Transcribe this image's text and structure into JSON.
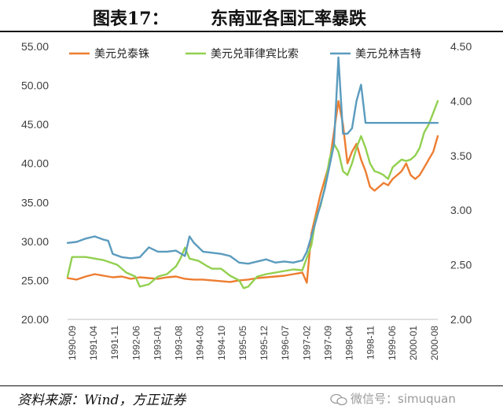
{
  "figure_label": "图表17：",
  "title": "东南亚各国汇率暴跌",
  "source": "资料来源：Wind，方正证券",
  "watermark": "微信号：simuquan",
  "chart_data": {
    "type": "line",
    "legend_position": "top",
    "grid": false,
    "x_ticks": [
      "1990-09",
      "1991-04",
      "1991-11",
      "1992-06",
      "1993-01",
      "1993-08",
      "1994-03",
      "1994-10",
      "1995-05",
      "1995-12",
      "1996-07",
      "1997-02",
      "1997-09",
      "1998-04",
      "1998-11",
      "1999-06",
      "2000-01",
      "2000-08"
    ],
    "y_left": {
      "min": 20,
      "max": 55,
      "step": 5,
      "ticks": [
        "20.00",
        "25.00",
        "30.00",
        "35.00",
        "40.00",
        "45.00",
        "50.00",
        "55.00"
      ]
    },
    "y_right": {
      "min": 2.0,
      "max": 4.5,
      "step": 0.5,
      "ticks": [
        "2.00",
        "2.50",
        "3.00",
        "3.50",
        "4.00",
        "4.50"
      ]
    },
    "series": [
      {
        "name": "美元兑泰铢",
        "axis": "left",
        "color": "#ED7D31",
        "points": [
          [
            0,
            25.3
          ],
          [
            2,
            25.1
          ],
          [
            4,
            25.5
          ],
          [
            6,
            25.8
          ],
          [
            8,
            25.6
          ],
          [
            10,
            25.4
          ],
          [
            12,
            25.5
          ],
          [
            14,
            25.2
          ],
          [
            16,
            25.4
          ],
          [
            18,
            25.3
          ],
          [
            20,
            25.2
          ],
          [
            22,
            25.4
          ],
          [
            24,
            25.5
          ],
          [
            26,
            25.2
          ],
          [
            28,
            25.1
          ],
          [
            30,
            25.1
          ],
          [
            32,
            25.0
          ],
          [
            34,
            24.9
          ],
          [
            36,
            24.8
          ],
          [
            38,
            25.0
          ],
          [
            40,
            25.1
          ],
          [
            42,
            25.3
          ],
          [
            44,
            25.4
          ],
          [
            46,
            25.5
          ],
          [
            48,
            25.6
          ],
          [
            50,
            25.8
          ],
          [
            52,
            26.0
          ],
          [
            53,
            24.7
          ],
          [
            54,
            31.0
          ],
          [
            56,
            36.0
          ],
          [
            58,
            40.0
          ],
          [
            59,
            44.0
          ],
          [
            60,
            48.0
          ],
          [
            61,
            45.0
          ],
          [
            62,
            40.0
          ],
          [
            63,
            41.5
          ],
          [
            64,
            42.5
          ],
          [
            65,
            40.5
          ],
          [
            66,
            39.0
          ],
          [
            67,
            37.0
          ],
          [
            68,
            36.5
          ],
          [
            69,
            37.0
          ],
          [
            70,
            37.5
          ],
          [
            71,
            37.2
          ],
          [
            72,
            38.0
          ],
          [
            73,
            38.5
          ],
          [
            74,
            39.0
          ],
          [
            75,
            40.0
          ],
          [
            76,
            38.5
          ],
          [
            77,
            38.0
          ],
          [
            78,
            38.5
          ],
          [
            79,
            39.5
          ],
          [
            80,
            40.5
          ],
          [
            81,
            41.5
          ],
          [
            82,
            43.5
          ]
        ]
      },
      {
        "name": "美元兑菲律宾比索",
        "axis": "left",
        "color": "#92D050",
        "points": [
          [
            0,
            25.5
          ],
          [
            1,
            28.0
          ],
          [
            4,
            28.0
          ],
          [
            8,
            27.6
          ],
          [
            11,
            27.0
          ],
          [
            13,
            26.0
          ],
          [
            15,
            25.5
          ],
          [
            16,
            24.2
          ],
          [
            18,
            24.5
          ],
          [
            20,
            25.5
          ],
          [
            22,
            25.8
          ],
          [
            24,
            26.8
          ],
          [
            25,
            27.8
          ],
          [
            26,
            29.2
          ],
          [
            27,
            27.8
          ],
          [
            29,
            27.5
          ],
          [
            31,
            26.8
          ],
          [
            32,
            26.5
          ],
          [
            34,
            26.5
          ],
          [
            36,
            25.6
          ],
          [
            38,
            25.0
          ],
          [
            39,
            24.0
          ],
          [
            40,
            24.2
          ],
          [
            42,
            25.5
          ],
          [
            44,
            25.8
          ],
          [
            46,
            26.0
          ],
          [
            48,
            26.2
          ],
          [
            50,
            26.4
          ],
          [
            52,
            26.3
          ],
          [
            54,
            29.5
          ],
          [
            55,
            33.0
          ],
          [
            56,
            34.5
          ],
          [
            57,
            37.0
          ],
          [
            58,
            40.5
          ],
          [
            59,
            42.5
          ],
          [
            60,
            41.5
          ],
          [
            61,
            39.0
          ],
          [
            62,
            38.5
          ],
          [
            63,
            40.0
          ],
          [
            64,
            42.0
          ],
          [
            65,
            43.5
          ],
          [
            66,
            42.0
          ],
          [
            67,
            40.0
          ],
          [
            68,
            39.0
          ],
          [
            69,
            38.8
          ],
          [
            70,
            38.5
          ],
          [
            71,
            38.0
          ],
          [
            72,
            39.5
          ],
          [
            73,
            40.0
          ],
          [
            74,
            40.5
          ],
          [
            75,
            40.3
          ],
          [
            76,
            40.5
          ],
          [
            77,
            41.0
          ],
          [
            78,
            42.0
          ],
          [
            79,
            44.0
          ],
          [
            80,
            45.0
          ],
          [
            81,
            46.5
          ],
          [
            82,
            48.0
          ]
        ]
      },
      {
        "name": "美元兑林吉特",
        "axis": "right",
        "color": "#5B9BBE",
        "points": [
          [
            0,
            2.7
          ],
          [
            2,
            2.71
          ],
          [
            4,
            2.74
          ],
          [
            6,
            2.76
          ],
          [
            8,
            2.73
          ],
          [
            9,
            2.72
          ],
          [
            10,
            2.6
          ],
          [
            12,
            2.57
          ],
          [
            14,
            2.56
          ],
          [
            16,
            2.57
          ],
          [
            18,
            2.66
          ],
          [
            20,
            2.62
          ],
          [
            22,
            2.62
          ],
          [
            24,
            2.63
          ],
          [
            26,
            2.58
          ],
          [
            27,
            2.76
          ],
          [
            28,
            2.7
          ],
          [
            30,
            2.62
          ],
          [
            32,
            2.61
          ],
          [
            34,
            2.6
          ],
          [
            36,
            2.58
          ],
          [
            38,
            2.52
          ],
          [
            40,
            2.51
          ],
          [
            42,
            2.53
          ],
          [
            44,
            2.55
          ],
          [
            46,
            2.52
          ],
          [
            48,
            2.53
          ],
          [
            50,
            2.52
          ],
          [
            52,
            2.54
          ],
          [
            53,
            2.62
          ],
          [
            55,
            2.9
          ],
          [
            57,
            3.2
          ],
          [
            59,
            3.6
          ],
          [
            60,
            4.4
          ],
          [
            61,
            3.7
          ],
          [
            62,
            3.7
          ],
          [
            63,
            3.75
          ],
          [
            64,
            4.0
          ],
          [
            65,
            4.15
          ],
          [
            66,
            3.8
          ],
          [
            82,
            3.8
          ]
        ]
      }
    ]
  }
}
